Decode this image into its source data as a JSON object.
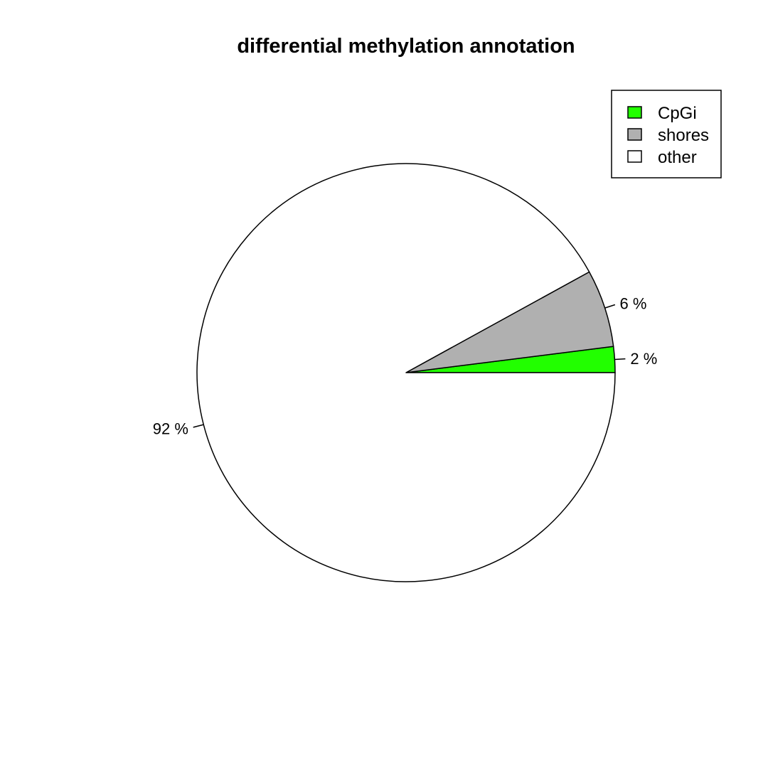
{
  "chart_data": {
    "type": "pie",
    "title": "differential methylation annotation",
    "slices": [
      {
        "label": "CpGi",
        "value": 2,
        "label_text": "2 %",
        "color": "#22ff00"
      },
      {
        "label": "shores",
        "value": 6,
        "label_text": "6 %",
        "color": "#b0b0b0"
      },
      {
        "label": "other",
        "value": 92,
        "label_text": "92 %",
        "color": "#ffffff"
      }
    ],
    "start_angle_deg": 0,
    "direction": "counterclockwise",
    "legend": {
      "placement": "top-right",
      "entries": [
        "CpGi",
        "shores",
        "other"
      ]
    }
  }
}
